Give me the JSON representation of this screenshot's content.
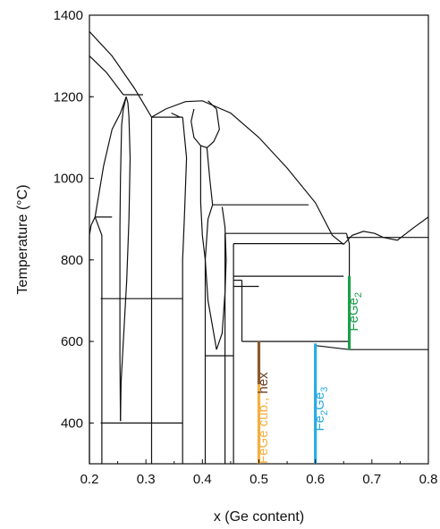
{
  "chart_data": {
    "type": "line",
    "title": "",
    "xlabel": "x (Ge content)",
    "ylabel": "Temperature (°C)",
    "xlim": [
      0.2,
      0.8
    ],
    "ylim": [
      300,
      1400
    ],
    "x_ticks": [
      0.2,
      0.3,
      0.4,
      0.5,
      0.6,
      0.7,
      0.8
    ],
    "x_tick_labels": [
      "0.2",
      "0.3",
      "0.4",
      "0.5",
      "0.6",
      "0.7",
      "0.8"
    ],
    "y_ticks": [
      400,
      600,
      800,
      1000,
      1200,
      1400
    ],
    "y_tick_labels": [
      "400",
      "600",
      "800",
      "1000",
      "1200",
      "1400"
    ],
    "grid": false,
    "boundary_lines": [
      {
        "points": [
          [
            0.2,
            1360
          ],
          [
            0.24,
            1300
          ],
          [
            0.28,
            1220
          ],
          [
            0.31,
            1150
          ],
          [
            0.335,
            1170
          ],
          [
            0.37,
            1188
          ],
          [
            0.4,
            1190
          ],
          [
            0.45,
            1160
          ],
          [
            0.5,
            1100
          ],
          [
            0.55,
            1025
          ],
          [
            0.6,
            940
          ],
          [
            0.63,
            860
          ],
          [
            0.65,
            838
          ]
        ]
      },
      {
        "points": [
          [
            0.65,
            838
          ],
          [
            0.665,
            860
          ],
          [
            0.685,
            870
          ],
          [
            0.705,
            865
          ],
          [
            0.72,
            855
          ],
          [
            0.745,
            848
          ],
          [
            0.775,
            880
          ],
          [
            0.8,
            905
          ]
        ]
      },
      {
        "points": [
          [
            0.2,
            1300
          ],
          [
            0.23,
            1260
          ],
          [
            0.26,
            1205
          ]
        ]
      },
      {
        "points": [
          [
            0.2,
            860
          ],
          [
            0.203,
            885
          ],
          [
            0.21,
            905
          ],
          [
            0.225,
            1030
          ],
          [
            0.24,
            1120
          ],
          [
            0.255,
            1160
          ],
          [
            0.265,
            1200
          ]
        ]
      },
      {
        "points": [
          [
            0.265,
            1200
          ],
          [
            0.268,
            1185
          ],
          [
            0.27,
            1150
          ],
          [
            0.272,
            1050
          ],
          [
            0.27,
            900
          ],
          [
            0.266,
            750
          ],
          [
            0.26,
            600
          ],
          [
            0.256,
            500
          ],
          [
            0.255,
            405
          ]
        ]
      },
      {
        "points": [
          [
            0.265,
            1200
          ],
          [
            0.26,
            1170
          ],
          [
            0.257,
            1130
          ],
          [
            0.255,
            1000
          ],
          [
            0.254,
            880
          ],
          [
            0.254,
            700
          ],
          [
            0.254,
            570
          ],
          [
            0.255,
            405
          ]
        ]
      },
      {
        "points": [
          [
            0.26,
            1205
          ],
          [
            0.295,
            1205
          ]
        ]
      },
      {
        "points": [
          [
            0.31,
            1150
          ],
          [
            0.365,
            1150
          ]
        ]
      },
      {
        "points": [
          [
            0.21,
            905
          ],
          [
            0.24,
            905
          ]
        ]
      },
      {
        "points": [
          [
            0.21,
            905
          ],
          [
            0.222,
            860
          ],
          [
            0.222,
            300
          ]
        ]
      },
      {
        "points": [
          [
            0.2,
            860
          ],
          [
            0.2,
            300
          ]
        ]
      },
      {
        "points": [
          [
            0.31,
            1150
          ],
          [
            0.31,
            300
          ]
        ]
      },
      {
        "points": [
          [
            0.22,
            705
          ],
          [
            0.365,
            705
          ]
        ]
      },
      {
        "points": [
          [
            0.22,
            400
          ],
          [
            0.365,
            400
          ]
        ]
      },
      {
        "points": [
          [
            0.365,
            1150
          ],
          [
            0.372,
            1050
          ],
          [
            0.368,
            900
          ],
          [
            0.365,
            800
          ],
          [
            0.365,
            300
          ]
        ]
      },
      {
        "points": [
          [
            0.36,
            1150
          ],
          [
            0.345,
            1160
          ]
        ]
      },
      {
        "points": [
          [
            0.385,
            1170
          ],
          [
            0.38,
            1140
          ],
          [
            0.385,
            1100
          ],
          [
            0.397,
            1080
          ],
          [
            0.408,
            1075
          ],
          [
            0.42,
            1090
          ],
          [
            0.43,
            1120
          ],
          [
            0.425,
            1170
          ],
          [
            0.41,
            1190
          ]
        ]
      },
      {
        "points": [
          [
            0.397,
            1080
          ],
          [
            0.397,
            1000
          ],
          [
            0.397,
            940
          ],
          [
            0.4,
            860
          ],
          [
            0.405,
            800
          ],
          [
            0.405,
            300
          ]
        ]
      },
      {
        "points": [
          [
            0.408,
            1075
          ],
          [
            0.413,
            1000
          ],
          [
            0.418,
            935
          ]
        ]
      },
      {
        "points": [
          [
            0.418,
            935
          ],
          [
            0.5,
            935
          ],
          [
            0.55,
            935
          ],
          [
            0.588,
            935
          ]
        ]
      },
      {
        "points": [
          [
            0.418,
            935
          ],
          [
            0.41,
            900
          ],
          [
            0.405,
            800
          ],
          [
            0.41,
            700
          ],
          [
            0.42,
            620
          ],
          [
            0.425,
            580
          ],
          [
            0.435,
            620
          ],
          [
            0.44,
            720
          ],
          [
            0.442,
            800
          ],
          [
            0.44,
            880
          ],
          [
            0.435,
            930
          ]
        ]
      },
      {
        "points": [
          [
            0.405,
            565
          ],
          [
            0.455,
            565
          ]
        ]
      },
      {
        "points": [
          [
            0.44,
            865
          ],
          [
            0.44,
            300
          ]
        ]
      },
      {
        "points": [
          [
            0.455,
            840
          ],
          [
            0.455,
            300
          ]
        ]
      },
      {
        "points": [
          [
            0.44,
            865
          ],
          [
            0.655,
            865
          ]
        ]
      },
      {
        "points": [
          [
            0.455,
            840
          ],
          [
            0.65,
            840
          ]
        ]
      },
      {
        "points": [
          [
            0.455,
            760
          ],
          [
            0.65,
            760
          ]
        ]
      },
      {
        "points": [
          [
            0.455,
            750
          ],
          [
            0.47,
            750
          ]
        ]
      },
      {
        "points": [
          [
            0.455,
            735
          ],
          [
            0.5,
            735
          ]
        ]
      },
      {
        "points": [
          [
            0.47,
            750
          ],
          [
            0.47,
            600
          ]
        ]
      },
      {
        "points": [
          [
            0.655,
            865
          ],
          [
            0.66,
            840
          ],
          [
            0.66,
            580
          ]
        ]
      },
      {
        "points": [
          [
            0.655,
            855
          ],
          [
            0.8,
            855
          ]
        ]
      },
      {
        "points": [
          [
            0.66,
            580
          ],
          [
            0.8,
            580
          ]
        ]
      },
      {
        "points": [
          [
            0.5,
            600
          ],
          [
            0.66,
            600
          ]
        ]
      },
      {
        "points": [
          [
            0.47,
            600
          ],
          [
            0.5,
            600
          ]
        ]
      },
      {
        "points": [
          [
            0.6,
            590
          ],
          [
            0.6,
            300
          ]
        ]
      },
      {
        "points": [
          [
            0.66,
            580
          ],
          [
            0.6,
            590
          ]
        ]
      }
    ],
    "phase_lines": [
      {
        "x": 0.5,
        "y_min": 300,
        "y_max": 495,
        "color": "#f5b041"
      },
      {
        "x": 0.5,
        "y_min": 495,
        "y_max": 600,
        "color": "#8b5a2b"
      },
      {
        "x": 0.6,
        "y_min": 300,
        "y_max": 595,
        "color": "#29abe2"
      },
      {
        "x": 0.66,
        "y_min": 580,
        "y_max": 760,
        "color": "#1e9e4a"
      }
    ],
    "phase_labels": [
      {
        "x": 0.515,
        "y": 300,
        "parts": [
          {
            "text": "FeGe cub.,",
            "color": "#f5b041",
            "sub": false
          },
          {
            "text": " hex",
            "color": "#6b4226",
            "sub": false
          }
        ]
      },
      {
        "x": 0.615,
        "y": 380,
        "parts": [
          {
            "text": "Fe",
            "color": "#29abe2",
            "sub": false
          },
          {
            "text": "2",
            "color": "#29abe2",
            "sub": true
          },
          {
            "text": "Ge",
            "color": "#29abe2",
            "sub": false
          },
          {
            "text": "3",
            "color": "#29abe2",
            "sub": true
          }
        ]
      },
      {
        "x": 0.675,
        "y": 625,
        "parts": [
          {
            "text": "FeGe",
            "color": "#1e9e4a",
            "sub": false
          },
          {
            "text": "2",
            "color": "#1e9e4a",
            "sub": true
          }
        ]
      }
    ]
  }
}
